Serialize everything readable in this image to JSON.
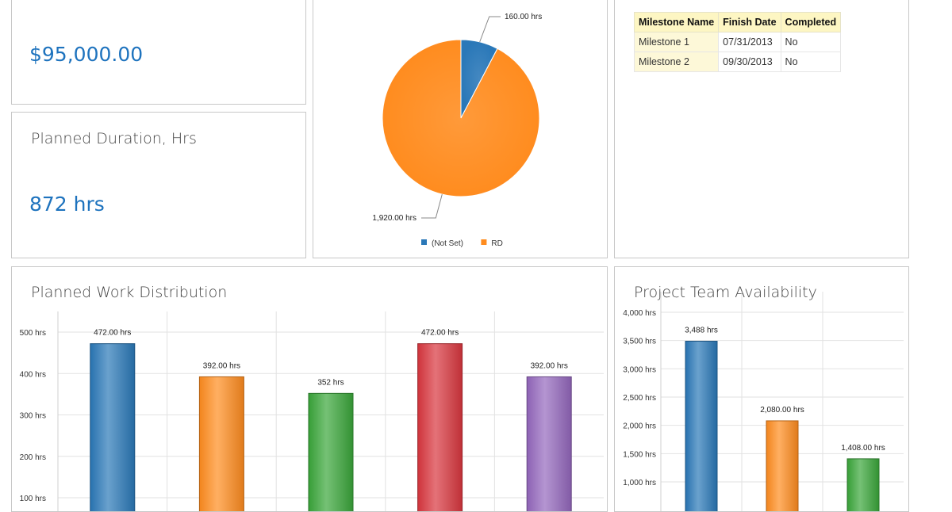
{
  "tiles": {
    "budget": {
      "value": "$95,000.00"
    },
    "duration": {
      "title": "Planned Duration, Hrs",
      "value": "872 hrs"
    },
    "milestones": {
      "headers": [
        "Milestone Name",
        "Finish Date",
        "Completed"
      ],
      "rows": [
        [
          "Milestone 1",
          "07/31/2013",
          "No"
        ],
        [
          "Milestone 2",
          "09/30/2013",
          "No"
        ]
      ]
    },
    "work": {
      "title": "Planned Work Distribution"
    },
    "team": {
      "title": "Project Team Availability"
    }
  },
  "chart_data": [
    {
      "type": "pie",
      "categories": [
        "(Not Set)",
        "RD"
      ],
      "values": [
        160,
        1920
      ],
      "data_labels": [
        "160.00 hrs",
        "1,920.00 hrs"
      ],
      "legend": "bottom",
      "colors": [
        "#2a78b8",
        "#ff8c1f"
      ]
    },
    {
      "type": "bar",
      "values": [
        472,
        392,
        352,
        472,
        392
      ],
      "data_labels": [
        "472.00 hrs",
        "392.00 hrs",
        "352 hrs",
        "472.00 hrs",
        "392.00 hrs"
      ],
      "yticks": [
        "100 hrs",
        "200 hrs",
        "300 hrs",
        "400 hrs",
        "500 hrs"
      ],
      "ylim": [
        100,
        500
      ],
      "grid": true,
      "colors": [
        "#2a78b8",
        "#ff8c1f",
        "#3aa63a",
        "#d9363e",
        "#9467bd"
      ]
    },
    {
      "type": "bar",
      "values": [
        3488,
        2080,
        1408
      ],
      "data_labels": [
        "3,488 hrs",
        "2,080.00 hrs",
        "1,408.00 hrs"
      ],
      "yticks": [
        "1,000 hrs",
        "1,500 hrs",
        "2,000 hrs",
        "2,500 hrs",
        "3,000 hrs",
        "3,500 hrs",
        "4,000 hrs"
      ],
      "ylim": [
        1000,
        4000
      ],
      "grid": true,
      "colors": [
        "#2a78b8",
        "#ff8c1f",
        "#3aa63a"
      ]
    }
  ]
}
